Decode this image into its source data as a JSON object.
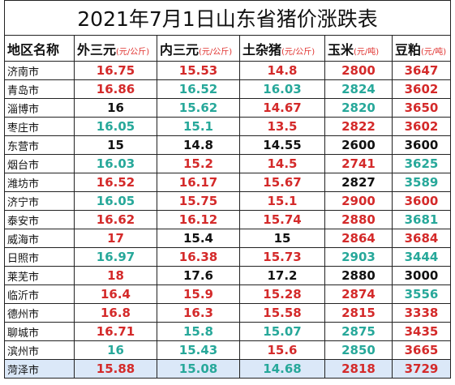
{
  "title": "2021年7月1日山东省猪价涨跌表",
  "table": {
    "header": [
      {
        "name": "地区名称"
      },
      {
        "name": "外三元",
        "unit": "(元/公斤)"
      },
      {
        "name": "内三元",
        "unit": "(元/公斤)"
      },
      {
        "name": "土杂猪",
        "unit": "(元/公斤)"
      },
      {
        "name": "玉米",
        "unit": "(元/吨)"
      },
      {
        "name": "豆粕",
        "unit": "(元/吨)"
      }
    ],
    "unit_color": "#e0322f",
    "rows": [
      {
        "region": "济南市",
        "values": [
          16.75,
          15.53,
          14.8,
          2800,
          3647
        ],
        "colors": [
          "#d42a2a",
          "#d42a2a",
          "#d42a2a",
          "#d42a2a",
          "#d42a2a"
        ]
      },
      {
        "region": "青岛市",
        "values": [
          16.86,
          16.52,
          16.03,
          2824,
          3602
        ],
        "colors": [
          "#d42a2a",
          "#27a89a",
          "#27a89a",
          "#27a89a",
          "#d42a2a"
        ]
      },
      {
        "region": "淄博市",
        "values": [
          16,
          15.62,
          14.67,
          2820,
          3650
        ],
        "colors": [
          "#111111",
          "#27a89a",
          "#d42a2a",
          "#27a89a",
          "#d42a2a"
        ]
      },
      {
        "region": "枣庄市",
        "values": [
          16.05,
          15.1,
          13.5,
          2822,
          3602
        ],
        "colors": [
          "#27a89a",
          "#27a89a",
          "#d42a2a",
          "#d42a2a",
          "#d42a2a"
        ]
      },
      {
        "region": "东营市",
        "values": [
          15,
          14.8,
          14.55,
          2600,
          3600
        ],
        "colors": [
          "#111111",
          "#111111",
          "#111111",
          "#111111",
          "#111111"
        ]
      },
      {
        "region": "烟台市",
        "values": [
          16.03,
          15.2,
          14.5,
          2741,
          3625
        ],
        "colors": [
          "#27a89a",
          "#d42a2a",
          "#d42a2a",
          "#d42a2a",
          "#27a89a"
        ]
      },
      {
        "region": "潍坊市",
        "values": [
          16.52,
          16.17,
          15.67,
          2827,
          3589
        ],
        "colors": [
          "#d42a2a",
          "#d42a2a",
          "#d42a2a",
          "#111111",
          "#27a89a"
        ]
      },
      {
        "region": "济宁市",
        "values": [
          16.05,
          15.75,
          15.1,
          2900,
          3600
        ],
        "colors": [
          "#27a89a",
          "#d42a2a",
          "#d42a2a",
          "#d42a2a",
          "#d42a2a"
        ]
      },
      {
        "region": "泰安市",
        "values": [
          16.62,
          16.12,
          15.74,
          2880,
          3681
        ],
        "colors": [
          "#d42a2a",
          "#d42a2a",
          "#d42a2a",
          "#d42a2a",
          "#27a89a"
        ]
      },
      {
        "region": "威海市",
        "values": [
          17,
          15.4,
          15,
          2864,
          3684
        ],
        "colors": [
          "#d42a2a",
          "#111111",
          "#111111",
          "#d42a2a",
          "#d42a2a"
        ]
      },
      {
        "region": "日照市",
        "values": [
          16.97,
          16.38,
          15.73,
          2903,
          3444
        ],
        "colors": [
          "#27a89a",
          "#d42a2a",
          "#d42a2a",
          "#27a89a",
          "#27a89a"
        ]
      },
      {
        "region": "莱芜市",
        "values": [
          18,
          17.6,
          17.2,
          2880,
          3000
        ],
        "colors": [
          "#d42a2a",
          "#111111",
          "#111111",
          "#111111",
          "#111111"
        ]
      },
      {
        "region": "临沂市",
        "values": [
          16.4,
          15.9,
          15.28,
          2874,
          3556
        ],
        "colors": [
          "#d42a2a",
          "#d42a2a",
          "#d42a2a",
          "#d42a2a",
          "#27a89a"
        ]
      },
      {
        "region": "德州市",
        "values": [
          16.8,
          16.3,
          15.58,
          2815,
          3338
        ],
        "colors": [
          "#d42a2a",
          "#d42a2a",
          "#d42a2a",
          "#d42a2a",
          "#d42a2a"
        ]
      },
      {
        "region": "聊城市",
        "values": [
          16.71,
          15.8,
          15.07,
          2875,
          3435
        ],
        "colors": [
          "#d42a2a",
          "#27a89a",
          "#27a89a",
          "#27a89a",
          "#d42a2a"
        ]
      },
      {
        "region": "滨州市",
        "values": [
          16,
          15.43,
          15.6,
          2850,
          3665
        ],
        "colors": [
          "#27a89a",
          "#27a89a",
          "#d42a2a",
          "#27a89a",
          "#d42a2a"
        ]
      },
      {
        "region": "菏泽市",
        "values": [
          15.88,
          15.08,
          14.68,
          2818,
          3729
        ],
        "colors": [
          "#d42a2a",
          "#27a89a",
          "#27a89a",
          "#d42a2a",
          "#d42a2a"
        ]
      }
    ]
  }
}
